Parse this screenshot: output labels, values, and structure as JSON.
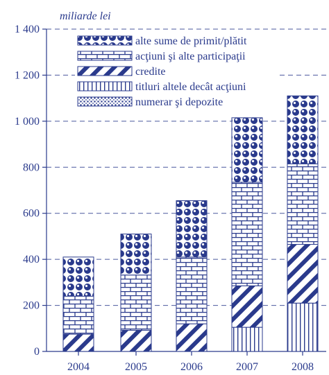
{
  "chart_data": {
    "type": "bar",
    "stacked": true,
    "unit_label": "miliarde lei",
    "categories": [
      "2004",
      "2005",
      "2006",
      "2007",
      "2008"
    ],
    "y_ticks": [
      "0",
      "200",
      "400",
      "600",
      "800",
      "1 000",
      "1 200",
      "1 400"
    ],
    "ylim": [
      0,
      1400
    ],
    "grid": true,
    "legend_position": "top-left",
    "series": [
      {
        "name": "numerar şi depozite",
        "pattern": "dots",
        "values": [
          0,
          0,
          0,
          0,
          0
        ]
      },
      {
        "name": "titluri altele decât acţiuni",
        "pattern": "vertical",
        "values": [
          0,
          0,
          0,
          105,
          210
        ]
      },
      {
        "name": "credite",
        "pattern": "diagonal",
        "values": [
          75,
          92,
          120,
          180,
          255
        ]
      },
      {
        "name": "acţiuni şi alte participaţii",
        "pattern": "brick",
        "values": [
          165,
          240,
          290,
          450,
          350
        ]
      },
      {
        "name": "alte sume de primit/plătit",
        "pattern": "circles",
        "values": [
          170,
          178,
          245,
          280,
          295
        ]
      }
    ],
    "legend_order": [
      "alte sume de primit/plătit",
      "acţiuni şi alte participaţii",
      "credite",
      "titluri altele decât acţiuni",
      "numerar şi depozite"
    ],
    "colors": {
      "ink": "#2a3a8c",
      "grid": "#2a3a8c",
      "background": "#ffffff"
    }
  }
}
